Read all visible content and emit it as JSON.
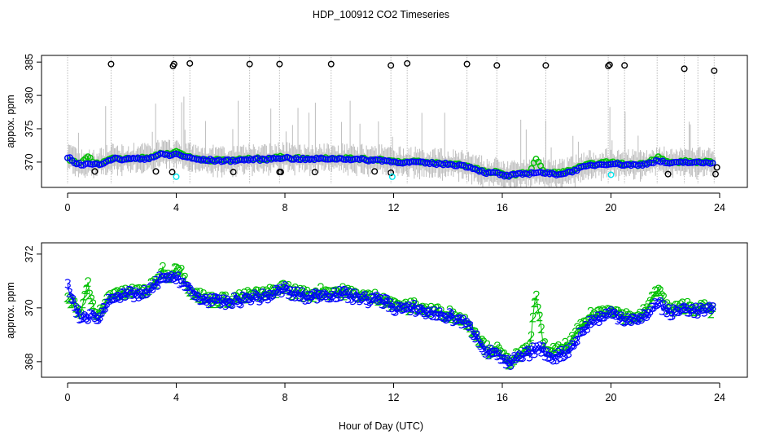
{
  "chart_data": [
    {
      "type": "scatter",
      "title": "HDP_100912  CO2 Timeseries",
      "xlabel": "Hour of Day (UTC)",
      "ylabel": "appox. ppm",
      "xlim": [
        -0.96,
        25.02
      ],
      "ylim": [
        366.2,
        386.0
      ],
      "xticks": [
        0,
        4,
        8,
        12,
        16,
        20,
        24
      ],
      "yticks": [
        370,
        375,
        380,
        385
      ],
      "grid": false,
      "x_start": 0,
      "x_step": 0.25,
      "series": [
        {
          "name": "2",
          "color": "#00c000",
          "marker": "circle"
        },
        {
          "name": "3",
          "color": "#0000ff",
          "marker": "circle"
        }
      ],
      "outliers_high": {
        "color": "#000000",
        "x": [
          1.6,
          3.88,
          3.92,
          4.5,
          6.7,
          7.8,
          9.7,
          11.9,
          12.5,
          14.7,
          15.8,
          17.6,
          19.9,
          19.95,
          20.5,
          22.7,
          23.8
        ],
        "y": [
          384.7,
          384.4,
          384.7,
          384.8,
          384.7,
          384.7,
          384.7,
          384.5,
          384.8,
          384.7,
          384.5,
          384.5,
          384.4,
          384.6,
          384.5,
          384.0,
          383.7
        ]
      },
      "outliers_low": {
        "color": "#000000",
        "x": [
          1.0,
          3.25,
          3.85,
          6.1,
          7.8,
          7.85,
          9.1,
          11.3,
          11.9,
          22.1,
          23.85,
          23.9
        ],
        "y": [
          368.6,
          368.6,
          368.5,
          368.5,
          368.5,
          368.5,
          368.5,
          368.6,
          368.4,
          368.2,
          368.2,
          369.2
        ]
      },
      "cyan_points": {
        "color": "#00e5ee",
        "x": [
          4.0,
          11.95,
          20.0
        ],
        "y": [
          367.8,
          367.8,
          368.1
        ]
      },
      "spike_times": [
        0.0,
        1.6,
        3.9,
        4.5,
        6.7,
        7.8,
        9.7,
        11.9,
        12.5,
        14.7,
        15.8,
        17.6,
        19.9,
        20.5,
        21.7,
        22.7,
        23.2,
        23.8
      ]
    },
    {
      "type": "scatter",
      "xlabel": "Hour of Day (UTC)",
      "ylabel": "approx. ppm",
      "xlim": [
        -0.96,
        25.02
      ],
      "ylim": [
        367.42,
        372.42
      ],
      "xticks": [
        0,
        4,
        8,
        12,
        16,
        20,
        24
      ],
      "yticks": [
        368,
        370,
        372
      ],
      "grid": false,
      "x_start": 0,
      "x_step": 0.25,
      "series": [
        {
          "name": "2",
          "color": "#00c000",
          "marker": "text-2",
          "values": [
            370.5,
            370.1,
            369.8,
            370.9,
            369.7,
            369.9,
            370.4,
            370.6,
            370.5,
            370.6,
            370.6,
            370.6,
            370.7,
            371.0,
            371.4,
            371.1,
            371.6,
            371.2,
            370.7,
            370.5,
            370.4,
            370.3,
            370.3,
            370.3,
            370.3,
            370.4,
            370.4,
            370.5,
            370.5,
            370.5,
            370.6,
            370.7,
            370.8,
            370.6,
            370.6,
            370.5,
            370.5,
            370.6,
            370.6,
            370.6,
            370.6,
            370.6,
            370.5,
            370.5,
            370.4,
            370.4,
            370.4,
            370.3,
            370.1,
            370.1,
            370.0,
            370.1,
            370.0,
            369.9,
            369.9,
            369.8,
            369.8,
            369.7,
            369.6,
            369.4,
            369.1,
            368.7,
            368.4,
            368.5,
            368.2,
            368.0,
            368.2,
            368.3,
            368.5,
            370.6,
            368.6,
            368.4,
            368.4,
            368.5,
            368.7,
            369.1,
            369.4,
            369.7,
            369.8,
            369.9,
            370.0,
            369.8,
            369.7,
            369.7,
            369.6,
            369.9,
            370.3,
            370.8,
            370.1,
            369.9,
            370.0,
            370.1,
            370.0,
            370.0,
            370.0,
            369.9
          ]
        },
        {
          "name": "3",
          "color": "#0000ff",
          "marker": "text-3",
          "values": [
            370.8,
            370.0,
            369.6,
            369.7,
            369.6,
            369.8,
            370.3,
            370.5,
            370.4,
            370.5,
            370.5,
            370.5,
            370.6,
            370.9,
            371.2,
            371.0,
            371.2,
            370.9,
            370.6,
            370.4,
            370.3,
            370.3,
            370.2,
            370.2,
            370.2,
            370.3,
            370.3,
            370.4,
            370.4,
            370.4,
            370.5,
            370.6,
            370.7,
            370.5,
            370.5,
            370.4,
            370.4,
            370.5,
            370.5,
            370.5,
            370.5,
            370.5,
            370.4,
            370.4,
            370.3,
            370.3,
            370.3,
            370.2,
            370.0,
            370.0,
            369.9,
            370.0,
            369.9,
            369.8,
            369.8,
            369.7,
            369.7,
            369.6,
            369.5,
            369.3,
            369.0,
            368.6,
            368.3,
            368.4,
            368.0,
            367.9,
            368.1,
            368.2,
            368.3,
            368.5,
            368.4,
            368.2,
            368.2,
            368.3,
            368.5,
            368.9,
            369.2,
            369.5,
            369.6,
            369.7,
            369.8,
            369.7,
            369.6,
            369.6,
            369.5,
            369.7,
            370.0,
            370.2,
            369.9,
            369.8,
            369.9,
            370.0,
            369.9,
            369.9,
            369.9,
            369.9
          ]
        }
      ]
    }
  ]
}
